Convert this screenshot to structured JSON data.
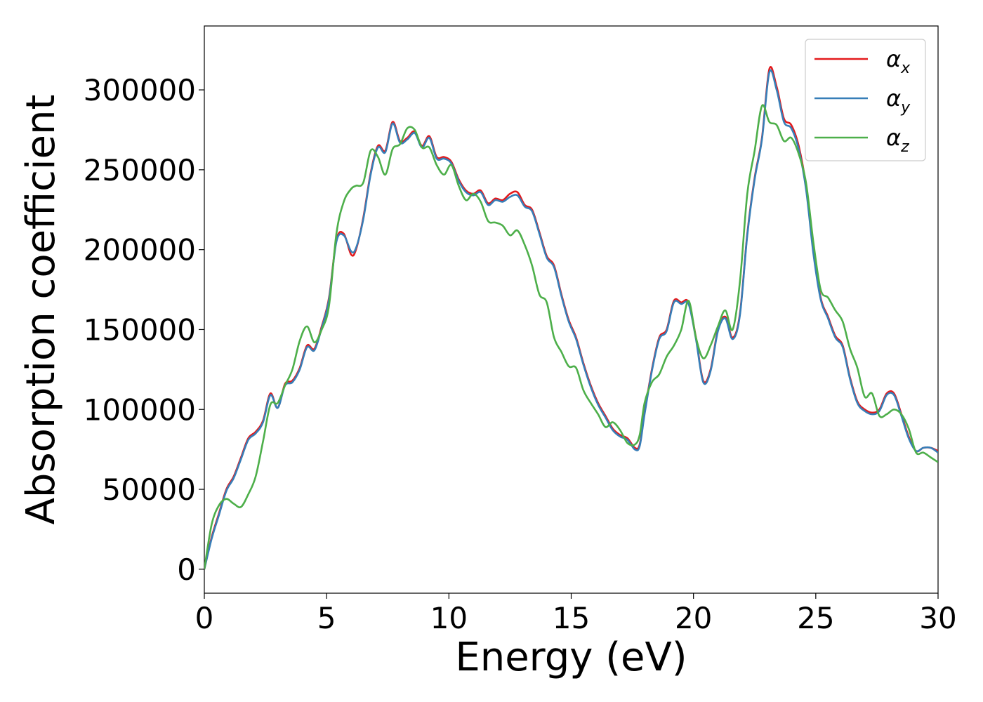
{
  "chart_data": {
    "type": "line",
    "title": "",
    "xlabel": "Energy (eV)",
    "ylabel": "Absorption coefficient",
    "xlim": [
      0,
      30
    ],
    "ylim": [
      -15000,
      340000
    ],
    "xticks": [
      0,
      5,
      10,
      15,
      20,
      25,
      30
    ],
    "xtick_labels": [
      "0",
      "5",
      "10",
      "15",
      "20",
      "25",
      "30"
    ],
    "yticks": [
      0,
      50000,
      100000,
      150000,
      200000,
      250000,
      300000
    ],
    "ytick_labels": [
      "0",
      "50000",
      "100000",
      "150000",
      "200000",
      "250000",
      "300000"
    ],
    "grid": false,
    "legend_position": "top-right",
    "series": [
      {
        "name": "αx",
        "symbol": "α",
        "subscript": "x",
        "color": "#e41a1c",
        "x": [
          0,
          0.3,
          0.6,
          0.9,
          1.2,
          1.5,
          1.8,
          2.1,
          2.4,
          2.7,
          3.0,
          3.3,
          3.6,
          3.9,
          4.2,
          4.5,
          4.8,
          5.1,
          5.4,
          5.7,
          6.0,
          6.2,
          6.5,
          6.8,
          7.1,
          7.4,
          7.7,
          8.0,
          8.3,
          8.6,
          8.9,
          9.2,
          9.5,
          9.8,
          10.1,
          10.4,
          10.7,
          11.0,
          11.3,
          11.6,
          11.9,
          12.2,
          12.5,
          12.8,
          13.1,
          13.4,
          13.7,
          14.0,
          14.3,
          14.6,
          14.9,
          15.2,
          15.5,
          15.8,
          16.1,
          16.4,
          16.7,
          17.0,
          17.3,
          17.6,
          17.8,
          18.0,
          18.3,
          18.6,
          18.9,
          19.2,
          19.5,
          19.8,
          20.1,
          20.4,
          20.7,
          21.0,
          21.3,
          21.6,
          21.9,
          22.2,
          22.5,
          22.8,
          23.1,
          23.4,
          23.7,
          24.0,
          24.3,
          24.6,
          24.9,
          25.2,
          25.5,
          25.8,
          26.1,
          26.4,
          26.7,
          27.0,
          27.3,
          27.6,
          27.9,
          28.2,
          28.5,
          28.8,
          29.1,
          29.4,
          29.7,
          30.0
        ],
        "y": [
          0,
          20000,
          35000,
          50000,
          58000,
          70000,
          82000,
          86000,
          93000,
          110000,
          101000,
          116000,
          118000,
          126000,
          140000,
          138000,
          152000,
          170000,
          206000,
          210000,
          197000,
          200000,
          220000,
          248000,
          265000,
          262000,
          280000,
          268000,
          270000,
          274000,
          265000,
          271000,
          258000,
          258000,
          255000,
          244000,
          237000,
          235000,
          237000,
          229000,
          232000,
          231000,
          235000,
          236000,
          228000,
          225000,
          211000,
          196000,
          190000,
          172000,
          156000,
          145000,
          129000,
          115000,
          104000,
          96000,
          88000,
          84000,
          82000,
          76000,
          78000,
          98000,
          125000,
          145000,
          150000,
          168000,
          167000,
          167000,
          145000,
          118000,
          125000,
          150000,
          158000,
          145000,
          160000,
          210000,
          245000,
          270000,
          313000,
          302000,
          282000,
          278000,
          265000,
          240000,
          200000,
          170000,
          158000,
          146000,
          140000,
          120000,
          105000,
          100000,
          98000,
          100000,
          110000,
          110000,
          97000,
          83000,
          74000,
          76000,
          76000,
          74000
        ]
      },
      {
        "name": "αy",
        "symbol": "α",
        "subscript": "y",
        "color": "#377eb8",
        "x": [
          0,
          0.3,
          0.6,
          0.9,
          1.2,
          1.5,
          1.8,
          2.1,
          2.4,
          2.7,
          3.0,
          3.3,
          3.6,
          3.9,
          4.2,
          4.5,
          4.8,
          5.1,
          5.4,
          5.7,
          6.0,
          6.2,
          6.5,
          6.8,
          7.1,
          7.4,
          7.7,
          8.0,
          8.3,
          8.6,
          8.9,
          9.2,
          9.5,
          9.8,
          10.1,
          10.4,
          10.7,
          11.0,
          11.3,
          11.6,
          11.9,
          12.2,
          12.5,
          12.8,
          13.1,
          13.4,
          13.7,
          14.0,
          14.3,
          14.6,
          14.9,
          15.2,
          15.5,
          15.8,
          16.1,
          16.4,
          16.7,
          17.0,
          17.3,
          17.6,
          17.8,
          18.0,
          18.3,
          18.6,
          18.9,
          19.2,
          19.5,
          19.8,
          20.1,
          20.4,
          20.7,
          21.0,
          21.3,
          21.6,
          21.9,
          22.2,
          22.5,
          22.8,
          23.1,
          23.4,
          23.7,
          24.0,
          24.3,
          24.6,
          24.9,
          25.2,
          25.5,
          25.8,
          26.1,
          26.4,
          26.7,
          27.0,
          27.3,
          27.6,
          27.9,
          28.2,
          28.5,
          28.8,
          29.1,
          29.4,
          29.7,
          30.0
        ],
        "y": [
          0,
          19000,
          34000,
          49000,
          57000,
          69000,
          81000,
          85000,
          92000,
          109000,
          101000,
          115000,
          117000,
          125000,
          139000,
          137000,
          151000,
          169000,
          205000,
          209000,
          199000,
          201000,
          219000,
          247000,
          264000,
          261000,
          279000,
          267000,
          269000,
          273000,
          264000,
          270000,
          257000,
          257000,
          254000,
          243000,
          236000,
          234000,
          236000,
          228000,
          231000,
          230000,
          233000,
          234000,
          227000,
          224000,
          210000,
          195000,
          189000,
          171000,
          155000,
          144000,
          128000,
          114000,
          103000,
          95000,
          87000,
          83000,
          81000,
          75000,
          77000,
          97000,
          124000,
          144000,
          149000,
          167000,
          166000,
          166000,
          144000,
          117000,
          124000,
          149000,
          157000,
          144000,
          159000,
          209000,
          244000,
          269000,
          311000,
          300000,
          280000,
          276000,
          263000,
          238000,
          198000,
          169000,
          157000,
          145000,
          139000,
          119000,
          104000,
          99000,
          97000,
          99000,
          109000,
          109000,
          96000,
          82000,
          74000,
          76000,
          76000,
          73000
        ]
      },
      {
        "name": "αz",
        "symbol": "α",
        "subscript": "z",
        "color": "#4daf4a",
        "x": [
          0,
          0.3,
          0.6,
          0.9,
          1.2,
          1.5,
          1.8,
          2.1,
          2.4,
          2.7,
          3.0,
          3.3,
          3.6,
          3.9,
          4.2,
          4.5,
          4.8,
          5.1,
          5.4,
          5.7,
          6.0,
          6.2,
          6.5,
          6.8,
          7.1,
          7.4,
          7.7,
          8.0,
          8.3,
          8.6,
          8.9,
          9.2,
          9.5,
          9.8,
          10.1,
          10.4,
          10.7,
          11.0,
          11.3,
          11.6,
          11.9,
          12.2,
          12.5,
          12.8,
          13.1,
          13.4,
          13.7,
          14.0,
          14.3,
          14.6,
          14.9,
          15.2,
          15.5,
          15.8,
          16.1,
          16.4,
          16.7,
          17.0,
          17.3,
          17.6,
          17.8,
          18.0,
          18.3,
          18.6,
          18.9,
          19.2,
          19.5,
          19.8,
          20.1,
          20.4,
          20.7,
          21.0,
          21.3,
          21.6,
          21.9,
          22.2,
          22.5,
          22.8,
          23.1,
          23.4,
          23.7,
          24.0,
          24.3,
          24.6,
          24.9,
          25.2,
          25.5,
          25.8,
          26.1,
          26.4,
          26.7,
          27.0,
          27.3,
          27.6,
          27.9,
          28.2,
          28.5,
          28.8,
          29.1,
          29.4,
          29.7,
          30.0
        ],
        "y": [
          0,
          28000,
          40000,
          44000,
          41000,
          39000,
          47000,
          58000,
          80000,
          103000,
          104000,
          115000,
          125000,
          143000,
          152000,
          142000,
          150000,
          165000,
          210000,
          230000,
          238000,
          240000,
          242000,
          262000,
          258000,
          247000,
          263000,
          266000,
          276000,
          275000,
          264000,
          264000,
          253000,
          247000,
          253000,
          240000,
          231000,
          235000,
          230000,
          218000,
          217000,
          215000,
          209000,
          212000,
          203000,
          190000,
          172000,
          167000,
          145000,
          136000,
          127000,
          126000,
          112000,
          104000,
          97000,
          89000,
          92000,
          87000,
          79000,
          78000,
          84000,
          104000,
          117000,
          122000,
          133000,
          140000,
          150000,
          168000,
          145000,
          132000,
          140000,
          152000,
          162000,
          150000,
          180000,
          235000,
          262000,
          290000,
          280000,
          278000,
          268000,
          270000,
          260000,
          242000,
          205000,
          175000,
          170000,
          162000,
          155000,
          138000,
          126000,
          108000,
          110000,
          96000,
          97000,
          100000,
          97000,
          88000,
          73000,
          73000,
          70000,
          67000
        ]
      }
    ]
  }
}
